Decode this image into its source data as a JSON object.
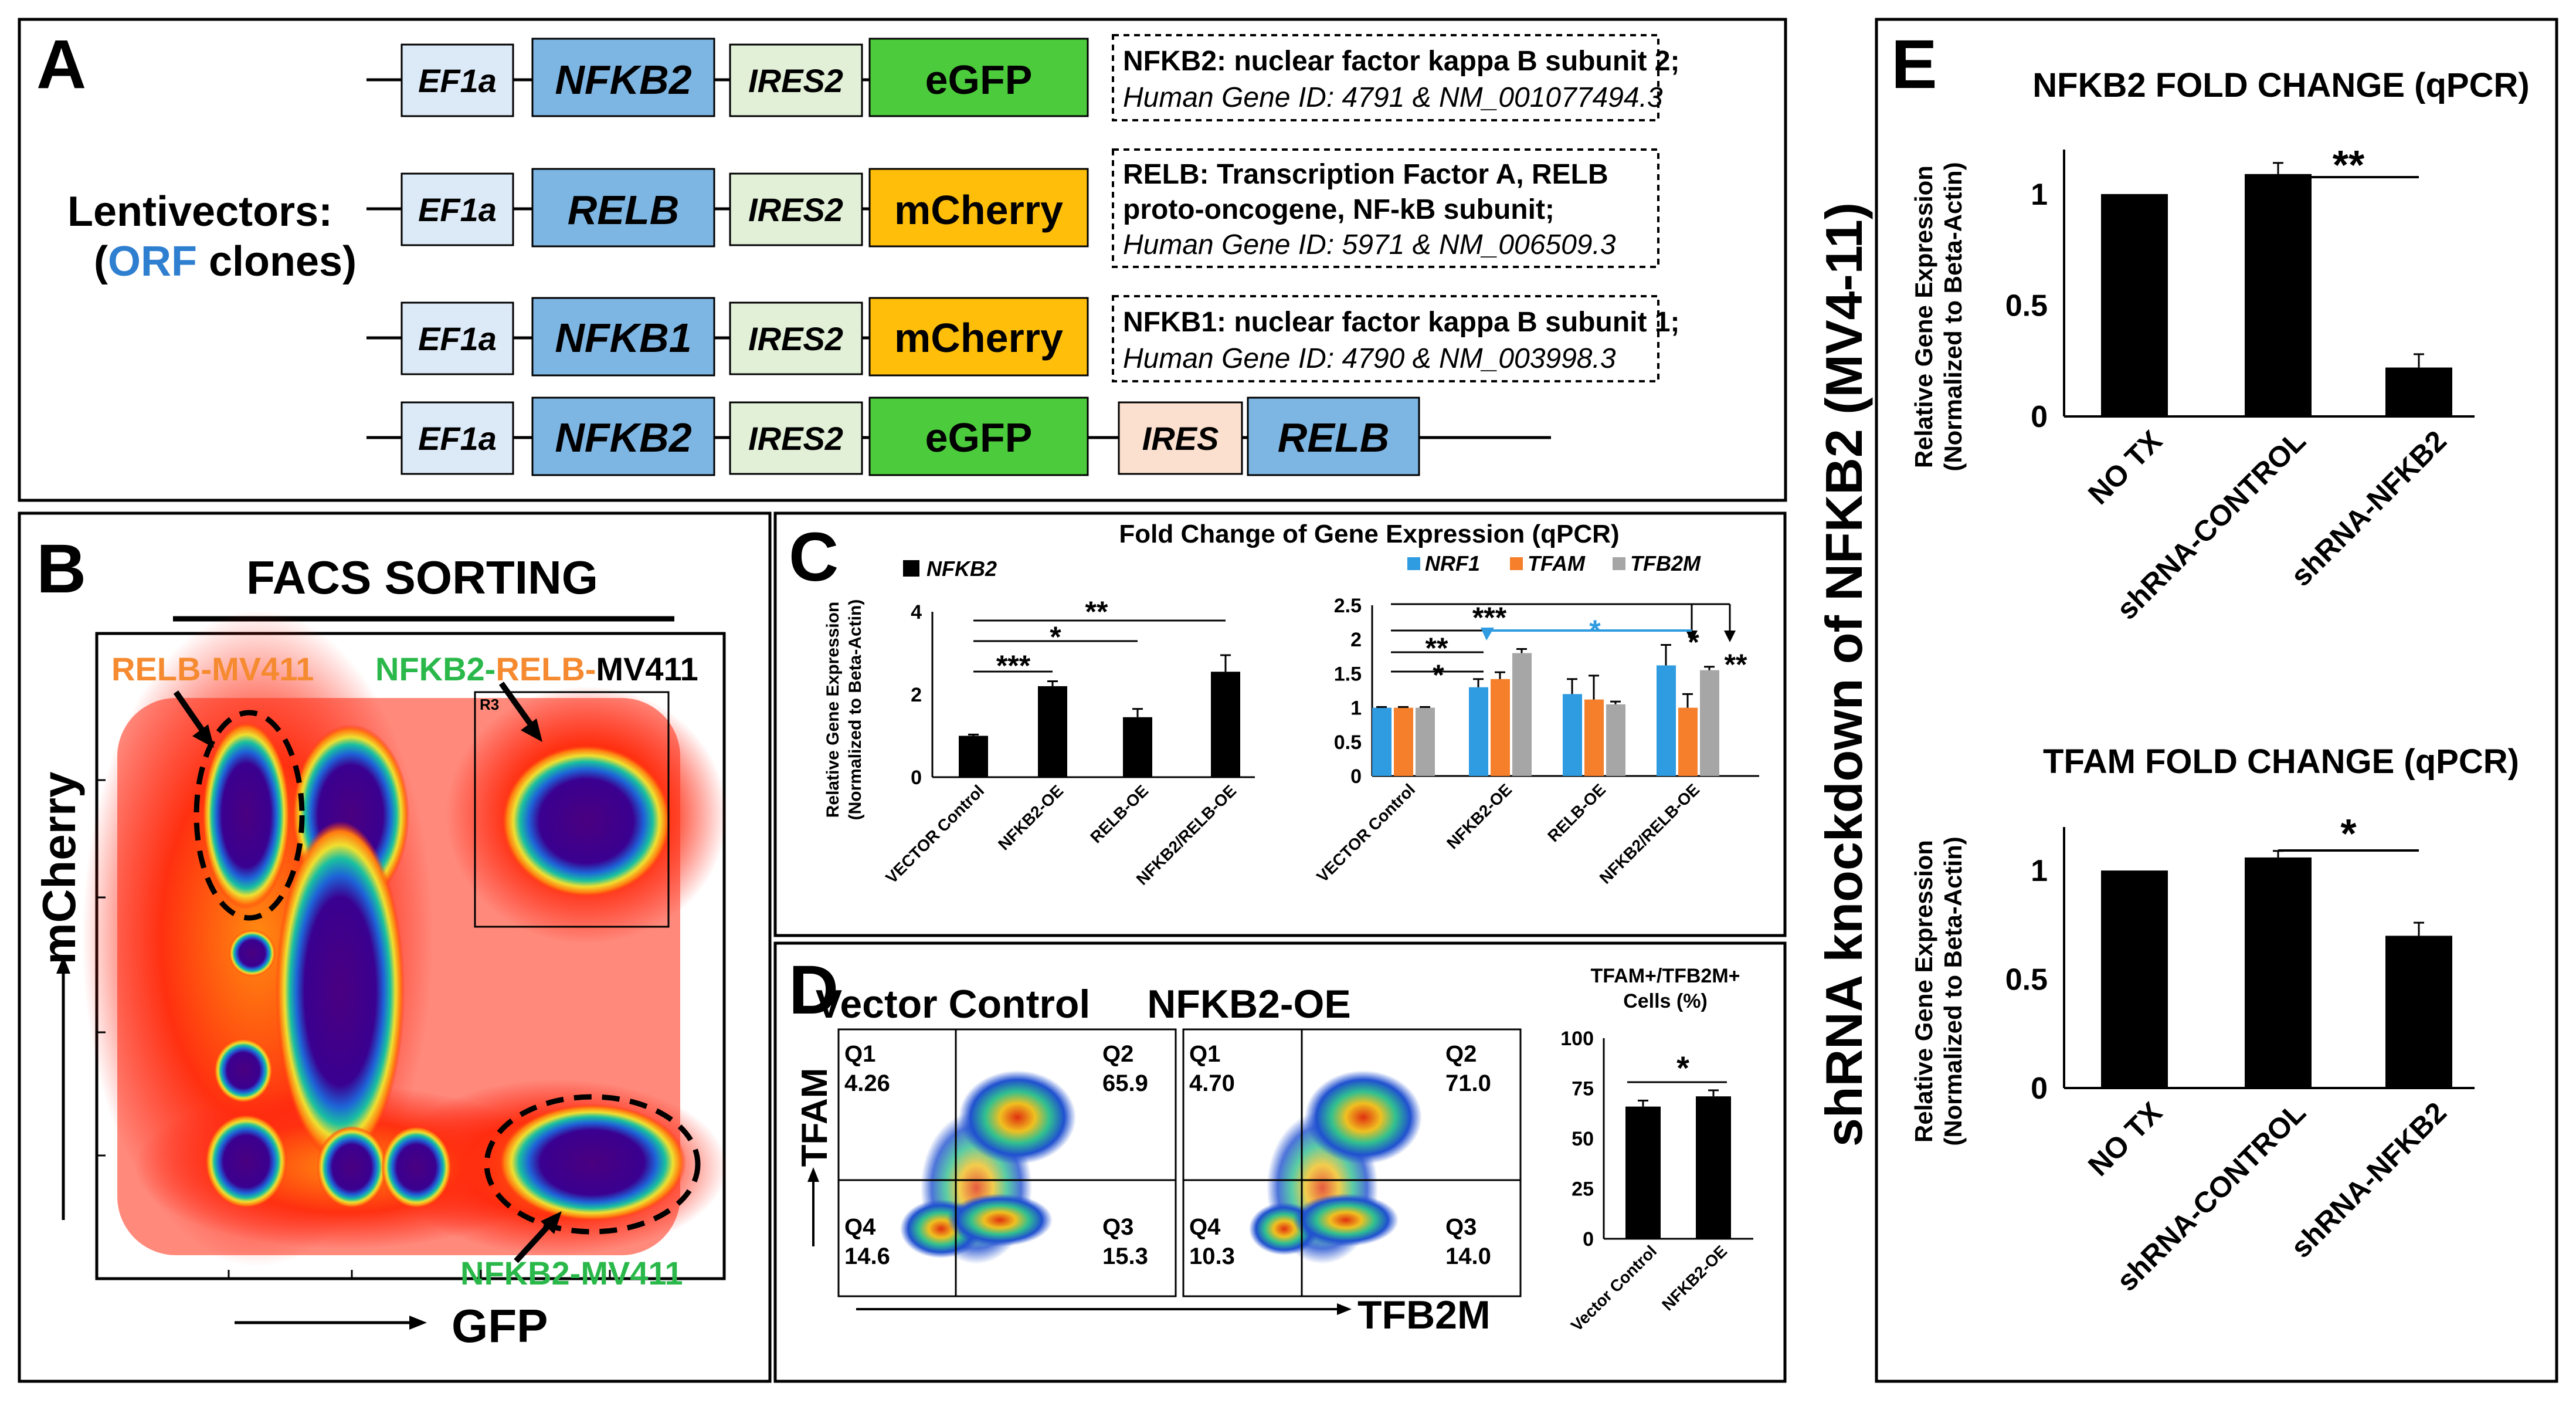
{
  "panelA": {
    "letter": "A",
    "lenti_label": "Lentivectors:",
    "orf_prefix": "(",
    "orf_word": "ORF",
    "orf_suffix": " clones)",
    "constructs": [
      {
        "parts": [
          "EF1a",
          "NFKB2",
          "IRES2",
          "eGFP"
        ]
      },
      {
        "parts": [
          "EF1a",
          "RELB",
          "IRES2",
          "mCherry"
        ]
      },
      {
        "parts": [
          "EF1a",
          "NFKB1",
          "IRES2",
          "mCherry"
        ]
      },
      {
        "parts": [
          "EF1a",
          "NFKB2",
          "IRES2",
          "eGFP",
          "IRES",
          "RELB"
        ]
      }
    ],
    "info": [
      {
        "line1": "NFKB2: nuclear factor kappa B subunit 2;",
        "line2": "Human Gene ID: 4791 & NM_001077494.3"
      },
      {
        "line1": "RELB: Transcription Factor A, RELB",
        "line1b": "proto-oncogene, NF-kB subunit;",
        "line2": "Human Gene ID: 5971 & NM_006509.3"
      },
      {
        "line1": "NFKB1: nuclear factor kappa B subunit 1;",
        "line2": "Human Gene ID: 4790 & NM_003998.3"
      }
    ]
  },
  "panelB": {
    "letter": "B",
    "title": "FACS SORTING",
    "ylabel": "mCherry",
    "xlabel": "GFP",
    "relb_label": "RELB-MV411",
    "nr_nfkb2": "NFKB2-",
    "nr_relb": "RELB-",
    "nr_mv": "MV411",
    "nfkb2_label": "NFKB2-MV411",
    "gate": "R3"
  },
  "panelC": {
    "letter": "C",
    "title": "Fold Change of Gene Expression (qPCR)",
    "ylabel1": "Relative Gene Expression",
    "ylabel2": "(Normalized to Beta-Actin)",
    "legend_left": "NFKB2",
    "legend_right": [
      "NRF1",
      "TFAM",
      "TFB2M"
    ],
    "stars": {
      "s3": "***",
      "s1": "*",
      "s2": "**"
    },
    "left_ticks": [
      "0",
      "2",
      "4"
    ],
    "right_ticks": [
      "0",
      "0.5",
      "1",
      "1.5",
      "2",
      "2.5"
    ],
    "colors": {
      "NRF1": "#2f9be0",
      "TFAM": "#f57f2a",
      "TFB2M": "#a6a6a6",
      "NFKB2": "#000000"
    },
    "chart_data": [
      {
        "type": "bar",
        "title": "Fold Change of Gene Expression (qPCR)",
        "ylabel": "Relative Gene Expression (Normalized to Beta-Actin)",
        "ylim": [
          0,
          4
        ],
        "categories": [
          "VECTOR Control",
          "NFKB2-OE",
          "RELB-OE",
          "NFKB2/RELB-OE"
        ],
        "series": [
          {
            "name": "NFKB2",
            "values": [
              1.0,
              2.2,
              1.45,
              2.55
            ],
            "errors": [
              0.03,
              0.12,
              0.2,
              0.4
            ]
          }
        ]
      },
      {
        "type": "bar",
        "ylim": [
          0,
          2.5
        ],
        "categories": [
          "VECTOR Control",
          "NFKB2-OE",
          "RELB-OE",
          "NFKB2/RELB-OE"
        ],
        "series": [
          {
            "name": "NRF1",
            "values": [
              1.0,
              1.3,
              1.2,
              1.62
            ],
            "errors": [
              0.01,
              0.12,
              0.22,
              0.3
            ]
          },
          {
            "name": "TFAM",
            "values": [
              1.0,
              1.42,
              1.12,
              1.0
            ],
            "errors": [
              0.01,
              0.1,
              0.35,
              0.2
            ]
          },
          {
            "name": "TFB2M",
            "values": [
              1.0,
              1.8,
              1.05,
              1.55
            ],
            "errors": [
              0.01,
              0.06,
              0.04,
              0.05
            ]
          }
        ]
      }
    ]
  },
  "panelD": {
    "letter": "D",
    "vc_title": "Vector Control",
    "oe_title": "NFKB2-OE",
    "ylabel": "TFAM",
    "xlabel": "TFB2M",
    "vc_q": {
      "q1": "Q1",
      "q1v": "4.26",
      "q2": "Q2",
      "q2v": "65.9",
      "q3": "Q3",
      "q3v": "15.3",
      "q4": "Q4",
      "q4v": "14.6"
    },
    "oe_q": {
      "q1": "Q1",
      "q1v": "4.70",
      "q2": "Q2",
      "q2v": "71.0",
      "q3": "Q3",
      "q3v": "14.0",
      "q4": "Q4",
      "q4v": "10.3"
    },
    "bar_title1": "TFAM+/TFB2M+",
    "bar_title2": "Cells (%)",
    "bar_ticks": [
      "0",
      "25",
      "50",
      "75",
      "100"
    ],
    "star": "*",
    "chart_data": {
      "type": "bar",
      "title": "TFAM+/TFB2M+ Cells (%)",
      "ylim": [
        0,
        100
      ],
      "categories": [
        "Vector Control",
        "NFKB2-OE"
      ],
      "series": [
        {
          "name": "TFAM+/TFB2M+",
          "values": [
            65.9,
            71.0
          ],
          "errors": [
            3,
            3
          ]
        }
      ]
    }
  },
  "sideTitle": "shRNA knockdown of NFKB2 (MV4-11)",
  "panelE": {
    "letter": "E",
    "ylabel1": "Relative Gene Expression",
    "ylabel2": "(Normalized to Beta-Actin)",
    "top_title": "NFKB2 FOLD CHANGE (qPCR)",
    "bottom_title": "TFAM FOLD CHANGE (qPCR)",
    "ticks": [
      "0",
      "0.5",
      "1"
    ],
    "top_star": "**",
    "bottom_star": "*",
    "categories": [
      "NO TX",
      "shRNA-CONTROL",
      "shRNA-NFKB2"
    ],
    "chart_data": [
      {
        "type": "bar",
        "title": "NFKB2 FOLD CHANGE (qPCR)",
        "ylim": [
          0,
          1.2
        ],
        "categories": [
          "NO TX",
          "shRNA-CONTROL",
          "shRNA-NFKB2"
        ],
        "series": [
          {
            "name": "NFKB2",
            "values": [
              1.0,
              1.09,
              0.22
            ],
            "errors": [
              0,
              0.05,
              0.06
            ]
          }
        ]
      },
      {
        "type": "bar",
        "title": "TFAM FOLD CHANGE (qPCR)",
        "ylim": [
          0,
          1.2
        ],
        "categories": [
          "NO TX",
          "shRNA-CONTROL",
          "shRNA-NFKB2"
        ],
        "series": [
          {
            "name": "TFAM",
            "values": [
              1.0,
              1.06,
              0.7
            ],
            "errors": [
              0,
              0.03,
              0.06
            ]
          }
        ]
      }
    ]
  }
}
